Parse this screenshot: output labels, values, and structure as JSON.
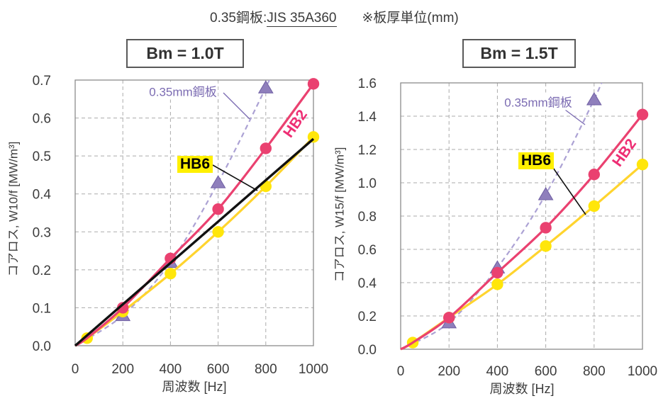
{
  "header": {
    "prefix": "0.35鋼板:",
    "jis": "JIS 35A360",
    "note": "※板厚単位(mm)"
  },
  "colors": {
    "pink": "#EA4170",
    "pink_text": "#EE2E74",
    "yellow_line": "#FFD42E",
    "yellow_marker": "#FFE60A",
    "yellow_highlight": "#FFF000",
    "purple_marker": "#8F7FBC",
    "purple_marker_edge": "#6F5FA3",
    "purple_line": "#ACA2D4",
    "purple_text": "#7B6BB2",
    "black_line": "#111111",
    "grid": "#ABABAB",
    "frame": "#8C8C8C",
    "tick_text": "#3D3D3D"
  },
  "chart_data": [
    {
      "type": "line",
      "title": "Bm = 1.0T",
      "xlabel": "周波数 [Hz]",
      "ylabel": "コアロス, W10/f [MW/m³]",
      "xlim": [
        0,
        1000
      ],
      "ylim": [
        0,
        0.7
      ],
      "xticks": [
        0,
        200,
        400,
        600,
        800,
        1000
      ],
      "ytick_labels": [
        "0.0",
        "0.1",
        "0.2",
        "0.3",
        "0.4",
        "0.5",
        "0.6",
        "0.7"
      ],
      "grid": "dashed",
      "legend": "inline-annotations",
      "series": [
        {
          "name": "0.35mm鋼板",
          "color_key": "purple",
          "marker": "triangle",
          "style": "dashed",
          "line_x": [
            0,
            200,
            400,
            600,
            800,
            840
          ],
          "line_y": [
            0,
            0.08,
            0.22,
            0.43,
            0.68,
            0.74
          ],
          "pts_x": [
            200,
            400,
            600,
            800
          ],
          "pts_y": [
            0.08,
            0.22,
            0.43,
            0.68
          ]
        },
        {
          "name": "HB6",
          "color_key": "yellow",
          "marker": "circle",
          "style": "solid",
          "line_x": [
            0,
            50,
            200,
            400,
            600,
            800,
            1000
          ],
          "line_y": [
            0,
            0.02,
            0.09,
            0.19,
            0.3,
            0.42,
            0.55
          ],
          "pts_x": [
            50,
            200,
            400,
            600,
            800,
            1000
          ],
          "pts_y": [
            0.02,
            0.09,
            0.19,
            0.3,
            0.42,
            0.55
          ]
        },
        {
          "name": "HB2",
          "color_key": "pink",
          "marker": "circle",
          "style": "solid",
          "line_x": [
            0,
            50,
            200,
            400,
            600,
            800,
            1000
          ],
          "line_y": [
            0,
            0.02,
            0.1,
            0.23,
            0.36,
            0.52,
            0.69
          ],
          "pts_x": [
            200,
            400,
            600,
            800,
            1000
          ],
          "pts_y": [
            0.1,
            0.23,
            0.36,
            0.52,
            0.69
          ]
        }
      ],
      "fit_line": {
        "label": "HB6 linear fit",
        "x": [
          0,
          1000
        ],
        "y": [
          0,
          0.545
        ]
      }
    },
    {
      "type": "line",
      "title": "Bm = 1.5T",
      "xlabel": "周波数 [Hz]",
      "ylabel": "コアロス, W15/f [MW/m³]",
      "xlim": [
        0,
        1000
      ],
      "ylim": [
        0,
        1.6
      ],
      "xticks": [
        0,
        200,
        400,
        600,
        800,
        1000
      ],
      "ytick_labels": [
        "0.0",
        "0.2",
        "0.4",
        "0.6",
        "0.8",
        "1.0",
        "1.2",
        "1.4",
        "1.6"
      ],
      "grid": "dashed",
      "legend": "inline-annotations",
      "series": [
        {
          "name": "0.35mm鋼板",
          "color_key": "purple",
          "marker": "triangle",
          "style": "dashed",
          "line_x": [
            0,
            200,
            400,
            600,
            800,
            870
          ],
          "line_y": [
            0,
            0.16,
            0.49,
            0.93,
            1.5,
            1.75
          ],
          "pts_x": [
            200,
            400,
            600,
            800
          ],
          "pts_y": [
            0.16,
            0.49,
            0.93,
            1.5
          ]
        },
        {
          "name": "HB6",
          "color_key": "yellow",
          "marker": "circle",
          "style": "solid",
          "line_x": [
            0,
            50,
            200,
            400,
            600,
            800,
            1000
          ],
          "line_y": [
            0,
            0.04,
            0.19,
            0.39,
            0.62,
            0.86,
            1.11
          ],
          "pts_x": [
            50,
            200,
            400,
            600,
            800,
            1000
          ],
          "pts_y": [
            0.04,
            0.19,
            0.39,
            0.62,
            0.86,
            1.11
          ]
        },
        {
          "name": "HB2",
          "color_key": "pink",
          "marker": "circle",
          "style": "solid",
          "line_x": [
            0,
            50,
            200,
            400,
            600,
            800,
            1000
          ],
          "line_y": [
            0,
            0.04,
            0.19,
            0.46,
            0.73,
            1.05,
            1.41
          ],
          "pts_x": [
            200,
            400,
            600,
            800,
            1000
          ],
          "pts_y": [
            0.19,
            0.46,
            0.73,
            1.05,
            1.41
          ]
        }
      ]
    }
  ]
}
